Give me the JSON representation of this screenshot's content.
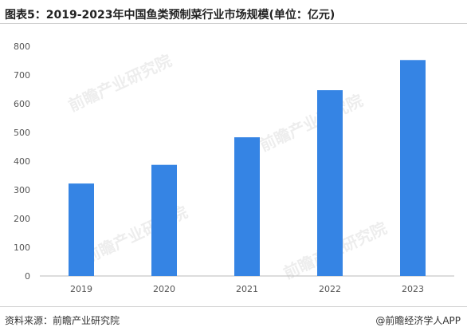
{
  "header": {
    "title": "图表5：2019-2023年中国鱼类预制菜行业市场规模(单位：亿元)"
  },
  "footer": {
    "source": "资料来源：前瞻产业研究院",
    "credit": "@前瞻经济学人APP"
  },
  "chart_data": {
    "type": "bar",
    "title": "图表5：2019-2023年中国鱼类预制菜行业市场规模(单位：亿元)",
    "xlabel": "",
    "ylabel": "",
    "categories": [
      "2019",
      "2020",
      "2021",
      "2022",
      "2023"
    ],
    "values": [
      322,
      387,
      483,
      647,
      752
    ],
    "ylim": [
      0,
      800
    ],
    "yticks": [
      0,
      100,
      200,
      300,
      400,
      500,
      600,
      700,
      800
    ],
    "grid": false,
    "bar_color": "#3584e4"
  }
}
